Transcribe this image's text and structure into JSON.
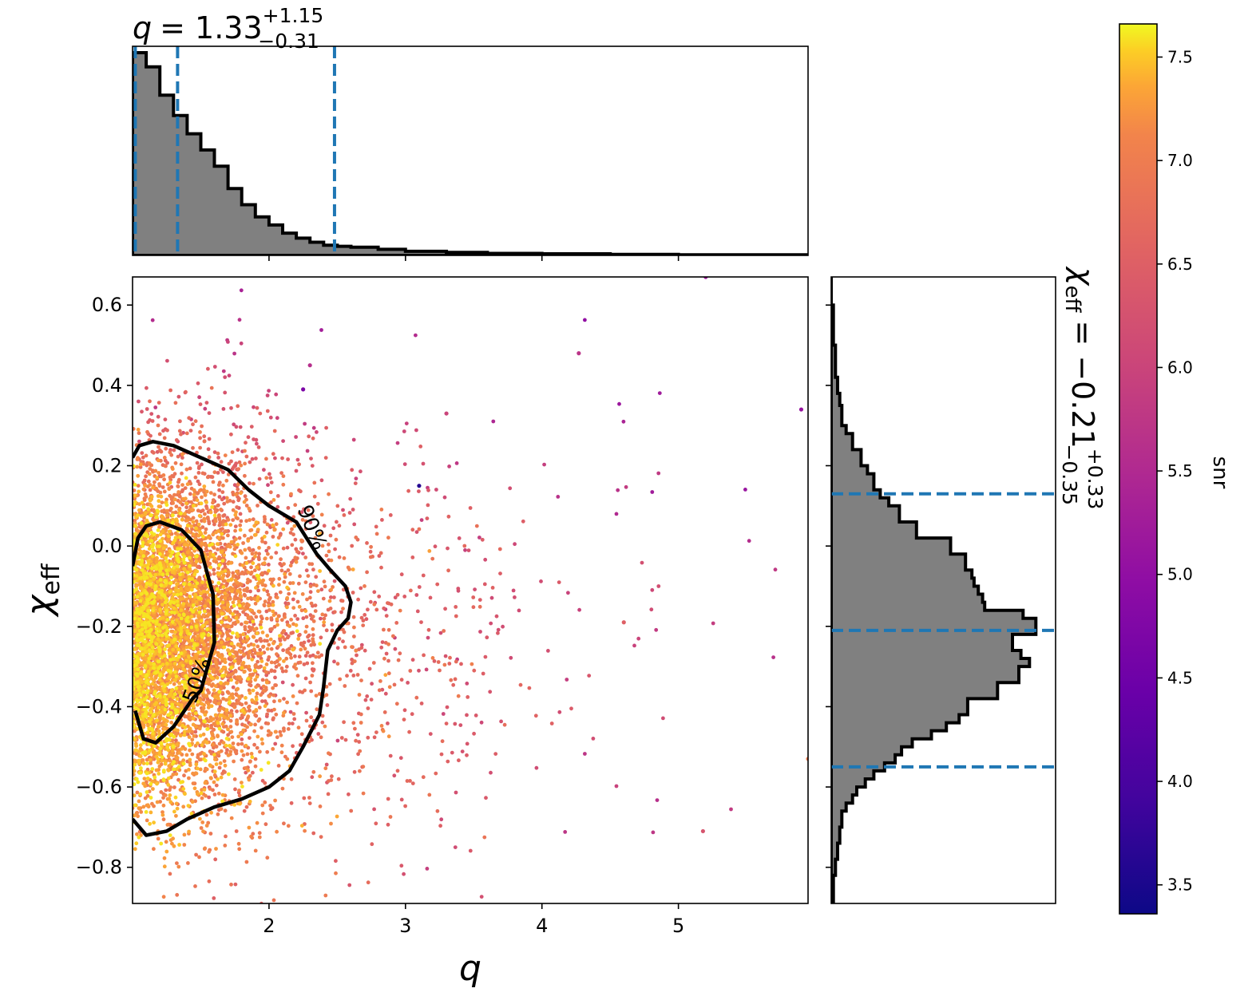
{
  "chart_data": [
    {
      "type": "scatter",
      "panel": "joint",
      "xlabel": "q",
      "ylabel": "χeff",
      "xlim": [
        1.0,
        5.95
      ],
      "ylim": [
        -0.89,
        0.67
      ],
      "x_ticks": [
        2,
        3,
        4,
        5
      ],
      "x_tick_labels": [
        "2",
        "3",
        "4",
        "5"
      ],
      "y_ticks": [
        0.6,
        0.4,
        0.2,
        0.0,
        -0.2,
        -0.4,
        -0.6,
        -0.8
      ],
      "y_tick_labels": [
        "0.6",
        "0.4",
        "0.2",
        "0.0",
        "−0.2",
        "−0.4",
        "−0.6",
        "−0.8"
      ],
      "color_by": "snr",
      "point_count_estimate": 9000,
      "sample_points": [
        {
          "x": 2.3,
          "y": 0.45,
          "snr": 5.6
        },
        {
          "x": 3.1,
          "y": 0.15,
          "snr": 3.6
        },
        {
          "x": 2.25,
          "y": 0.39,
          "snr": 4.7
        },
        {
          "x": 3.3,
          "y": 0.33,
          "snr": 6.0
        },
        {
          "x": 4.27,
          "y": 0.48,
          "snr": 5.7
        },
        {
          "x": 5.2,
          "y": 0.67,
          "snr": 5.2
        },
        {
          "x": 5.9,
          "y": 0.34,
          "snr": 5.1
        },
        {
          "x": 5.18,
          "y": -0.71,
          "snr": 6.3
        },
        {
          "x": 5.95,
          "y": -0.53,
          "snr": 7.0
        },
        {
          "x": 4.6,
          "y": -0.19,
          "snr": 6.5
        }
      ],
      "contours": [
        {
          "label": "50%",
          "points": [
            [
              1.02,
              -0.41
            ],
            [
              1.08,
              -0.48
            ],
            [
              1.17,
              -0.49
            ],
            [
              1.3,
              -0.45
            ],
            [
              1.44,
              -0.38
            ],
            [
              1.5,
              -0.36
            ],
            [
              1.6,
              -0.24
            ],
            [
              1.59,
              -0.12
            ],
            [
              1.5,
              -0.01
            ],
            [
              1.36,
              0.04
            ],
            [
              1.2,
              0.06
            ],
            [
              1.1,
              0.05
            ],
            [
              1.04,
              0.02
            ],
            [
              1.0,
              -0.05
            ]
          ]
        },
        {
          "label": "90%",
          "points": [
            [
              1.0,
              0.22
            ],
            [
              1.05,
              0.25
            ],
            [
              1.15,
              0.26
            ],
            [
              1.3,
              0.25
            ],
            [
              1.5,
              0.22
            ],
            [
              1.7,
              0.19
            ],
            [
              1.85,
              0.14
            ],
            [
              2.0,
              0.1
            ],
            [
              2.1,
              0.08
            ],
            [
              2.2,
              0.06
            ],
            [
              2.35,
              -0.02
            ],
            [
              2.45,
              -0.06
            ],
            [
              2.56,
              -0.1
            ],
            [
              2.6,
              -0.14
            ],
            [
              2.58,
              -0.18
            ],
            [
              2.5,
              -0.21
            ],
            [
              2.43,
              -0.26
            ],
            [
              2.4,
              -0.35
            ],
            [
              2.37,
              -0.42
            ],
            [
              2.25,
              -0.5
            ],
            [
              2.15,
              -0.56
            ],
            [
              2.0,
              -0.6
            ],
            [
              1.8,
              -0.63
            ],
            [
              1.6,
              -0.65
            ],
            [
              1.4,
              -0.68
            ],
            [
              1.25,
              -0.71
            ],
            [
              1.1,
              -0.72
            ],
            [
              1.0,
              -0.68
            ]
          ]
        }
      ]
    },
    {
      "type": "histogram",
      "panel": "top-marginal",
      "variable": "q",
      "title": "q = 1.33 +1.15 −0.31",
      "median": 1.33,
      "lower": 1.02,
      "upper": 2.48,
      "bins_x": [
        1.0,
        1.1,
        1.2,
        1.3,
        1.4,
        1.5,
        1.6,
        1.7,
        1.8,
        1.9,
        2.0,
        2.1,
        2.2,
        2.3,
        2.4,
        2.5,
        2.6,
        2.8,
        3.0,
        3.3,
        3.6,
        4.0,
        4.5,
        5.0,
        5.95
      ],
      "heights": [
        1.0,
        0.93,
        0.79,
        0.69,
        0.6,
        0.52,
        0.44,
        0.33,
        0.25,
        0.19,
        0.15,
        0.11,
        0.085,
        0.065,
        0.05,
        0.045,
        0.04,
        0.03,
        0.02,
        0.015,
        0.01,
        0.008,
        0.005,
        0.003
      ]
    },
    {
      "type": "histogram",
      "panel": "right-marginal",
      "variable": "χeff",
      "title": "χeff = −0.21 +0.33 −0.35",
      "median": -0.21,
      "lower": -0.55,
      "upper": 0.13,
      "bins_y": [
        0.67,
        0.6,
        0.5,
        0.42,
        0.38,
        0.35,
        0.3,
        0.28,
        0.24,
        0.2,
        0.18,
        0.14,
        0.12,
        0.1,
        0.06,
        0.02,
        -0.02,
        -0.06,
        -0.08,
        -0.1,
        -0.12,
        -0.14,
        -0.16,
        -0.18,
        -0.22,
        -0.26,
        -0.28,
        -0.3,
        -0.34,
        -0.38,
        -0.42,
        -0.44,
        -0.46,
        -0.48,
        -0.5,
        -0.52,
        -0.54,
        -0.56,
        -0.58,
        -0.6,
        -0.62,
        -0.64,
        -0.66,
        -0.7,
        -0.74,
        -0.78,
        -0.82,
        -0.89
      ],
      "heights": [
        0.0,
        0.01,
        0.02,
        0.03,
        0.04,
        0.05,
        0.07,
        0.1,
        0.14,
        0.17,
        0.2,
        0.23,
        0.27,
        0.32,
        0.4,
        0.56,
        0.63,
        0.66,
        0.67,
        0.69,
        0.71,
        0.72,
        0.9,
        0.96,
        0.85,
        0.89,
        0.93,
        0.88,
        0.78,
        0.64,
        0.6,
        0.54,
        0.47,
        0.38,
        0.33,
        0.3,
        0.25,
        0.2,
        0.16,
        0.12,
        0.1,
        0.07,
        0.05,
        0.04,
        0.03,
        0.02,
        0.01
      ],
      "xlim_max": 1.0
    },
    {
      "type": "colorbar",
      "label": "snr",
      "range": [
        3.36,
        7.66
      ],
      "ticks": [
        3.5,
        4.0,
        4.5,
        5.0,
        5.5,
        6.0,
        6.5,
        7.0,
        7.5
      ],
      "tick_labels": [
        "3.5",
        "4.0",
        "4.5",
        "5.0",
        "5.5",
        "6.0",
        "6.5",
        "7.0",
        "7.5"
      ],
      "colormap": "plasma"
    }
  ],
  "titles": {
    "top_var": "q",
    "top_eq": "= 1.33",
    "top_sup": "+1.15",
    "top_sub": "−0.31",
    "right_var": "χ",
    "right_varsub": "eff",
    "right_eq": "= −0.21",
    "right_sup": "+0.33",
    "right_sub": "−0.35"
  },
  "axis_labels": {
    "x": "q",
    "y": "χ",
    "y_sub": "eff",
    "colorbar": "snr"
  },
  "contour_labels": {
    "inner": "50%",
    "outer": "90%"
  },
  "colors": {
    "hist_fill": "#808080",
    "hist_edge": "#000000",
    "quantile_line": "#1f77b4",
    "contour": "#000000"
  }
}
